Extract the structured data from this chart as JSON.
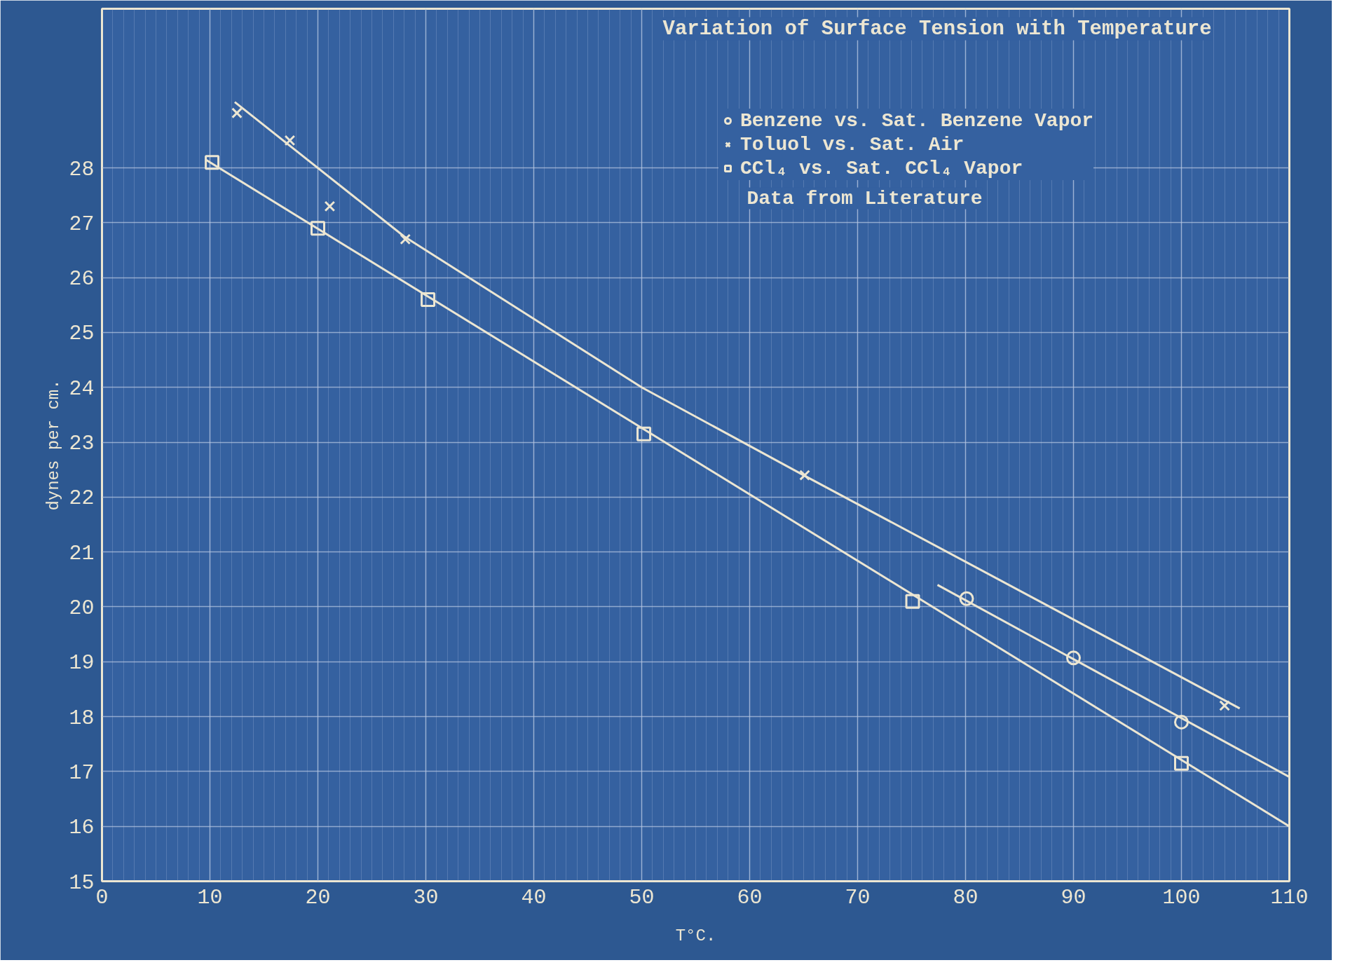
{
  "chart_data": {
    "type": "scatter",
    "title": "Variation of Surface Tension with Temperature",
    "xlabel": "T°C.",
    "ylabel": "dynes per cm.",
    "series": [
      {
        "name": "Benzene vs. Sat. Benzene Vapor",
        "color": "#ece6d2",
        "marker": "circle",
        "x": [
          80.1,
          90.0,
          100.0
        ],
        "values": [
          20.15,
          19.07,
          17.9
        ]
      },
      {
        "name": "Toluol vs. Sat. Air",
        "color": "#ece6d2",
        "marker": "cross",
        "x": [
          12.5,
          17.4,
          21.1,
          28.1,
          65.1,
          104.0
        ],
        "values": [
          29.0,
          28.5,
          27.3,
          26.7,
          22.4,
          18.2
        ]
      },
      {
        "name": "CCl₄ vs. Sat. CCl₄ Vapor",
        "color": "#ece6d2",
        "marker": "square",
        "x": [
          10.2,
          20.0,
          30.2,
          50.2,
          75.1,
          100.0
        ],
        "values": [
          28.1,
          26.9,
          25.6,
          23.15,
          20.1,
          17.15
        ]
      },
      {
        "type": "line",
        "color": "#ece6d2",
        "x": [
          77.4,
          110
        ],
        "values": [
          20.4,
          16.9
        ]
      },
      {
        "type": "line",
        "color": "#ece6d2",
        "x": [
          12.3,
          28,
          50,
          65,
          105.4
        ],
        "values": [
          29.2,
          26.75,
          24.0,
          22.4,
          18.15
        ]
      },
      {
        "type": "line",
        "color": "#ece6d2",
        "x": [
          9.6,
          110
        ],
        "values": [
          28.15,
          16.0
        ]
      }
    ],
    "annotations": [
      "Data from Literature"
    ],
    "xlim": [
      0,
      110
    ],
    "xticks": [
      0,
      10,
      20,
      30,
      40,
      50,
      60,
      70,
      80,
      90,
      100,
      110
    ],
    "ylim": [
      15,
      30.9
    ],
    "yticks": [
      15,
      16,
      17,
      18,
      19,
      20,
      21,
      22,
      23,
      24,
      25,
      26,
      27,
      28
    ],
    "grid": true,
    "legend": "top right"
  }
}
